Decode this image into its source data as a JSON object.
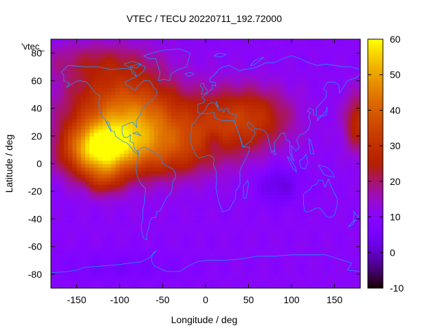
{
  "chart_data": {
    "type": "heatmap",
    "title": "VTEC / TECU 20220711_192.72000",
    "xlabel": "Longitude / deg",
    "ylabel": "Latitude / deg",
    "legend_key": "'vtec_",
    "xlim": [
      -180,
      180
    ],
    "ylim": [
      -90,
      90
    ],
    "x_ticks": [
      -150,
      -100,
      -50,
      0,
      50,
      100,
      150
    ],
    "y_ticks": [
      -80,
      -60,
      -40,
      -20,
      0,
      20,
      40,
      60,
      80
    ],
    "colorbar": {
      "range": [
        -10,
        60
      ],
      "ticks": [
        -10,
        0,
        10,
        20,
        30,
        40,
        50,
        60
      ],
      "colormap": "gnuplot-pm3d-rgbformulae-7-5-15"
    },
    "grid": false,
    "coastline_color": "#1e90ff",
    "field": {
      "background": 10,
      "blobs": [
        {
          "lon": -125,
          "lat": 10,
          "slon": 28,
          "slat": 14,
          "amp": 40
        },
        {
          "lon": -118,
          "lat": -12,
          "slon": 14,
          "slat": 8,
          "amp": 10
        },
        {
          "lon": -80,
          "lat": 28,
          "slon": 35,
          "slat": 22,
          "amp": 20
        },
        {
          "lon": -110,
          "lat": 45,
          "slon": 45,
          "slat": 20,
          "amp": 16
        },
        {
          "lon": -60,
          "lat": 15,
          "slon": 55,
          "slat": 16,
          "amp": 12
        },
        {
          "lon": 20,
          "lat": 30,
          "slon": 45,
          "slat": 18,
          "amp": 16
        },
        {
          "lon": 60,
          "lat": 35,
          "slon": 30,
          "slat": 14,
          "amp": 10
        },
        {
          "lon": -130,
          "lat": 75,
          "slon": 50,
          "slat": 10,
          "amp": 8
        },
        {
          "lon": -35,
          "lat": 5,
          "slon": 30,
          "slat": 12,
          "amp": 6
        },
        {
          "lon": 178,
          "lat": 30,
          "slon": 12,
          "slat": 15,
          "amp": 18
        },
        {
          "lon": 85,
          "lat": -15,
          "slon": 18,
          "slat": 10,
          "amp": -8
        },
        {
          "lon": 10,
          "lat": 15,
          "slon": 8,
          "slat": 6,
          "amp": -6
        },
        {
          "lon": -100,
          "lat": -75,
          "slon": 60,
          "slat": 8,
          "amp": -4
        }
      ]
    }
  }
}
